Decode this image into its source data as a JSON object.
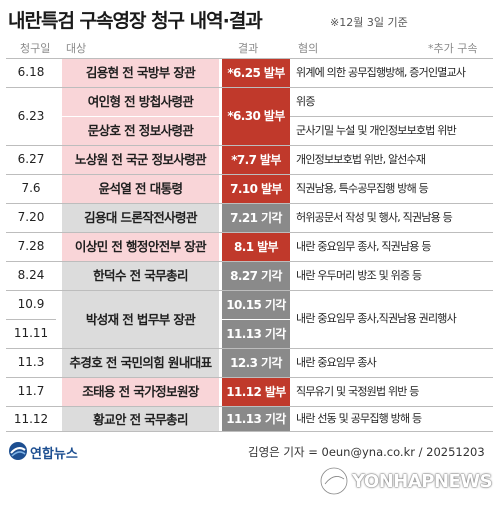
{
  "title": "내란특검 구속영장 청구 내역·결과",
  "subnote": "※12월 3일 기준",
  "headers": {
    "date": "청구일",
    "target": "대상",
    "result": "결과",
    "charge": "혐의",
    "extra": "*추가 구속"
  },
  "rows": [
    {
      "date": "6.18",
      "target": "김용현 전 국방부 장관",
      "result": "*6.25 발부",
      "charge": "위계에 의한 공무집행방해, 증거인멸교사"
    },
    {
      "date": "6.23",
      "target": "여인형 전 방첩사령관",
      "result": "*6.30 발부",
      "charge": "위증"
    },
    {
      "date": "",
      "target": "문상호 전 정보사령관",
      "result": "",
      "charge": "군사기밀 누설 및 개인정보보호법 위반"
    },
    {
      "date": "6.27",
      "target": "노상원 전 국군 정보사령관",
      "result": "*7.7 발부",
      "charge": "개인정보보호법 위반, 알선수재"
    },
    {
      "date": "7.6",
      "target": "윤석열 전 대통령",
      "result": "7.10 발부",
      "charge": "직권남용, 특수공무집행 방해 등"
    },
    {
      "date": "7.20",
      "target": "김용대 드론작전사령관",
      "result": "7.21 기각",
      "charge": "허위공문서 작성 및 행사, 직권남용 등"
    },
    {
      "date": "7.28",
      "target": "이상민 전 행정안전부 장관",
      "result": "8.1 발부",
      "charge": "내란 중요임무 종사, 직권남용 등"
    },
    {
      "date": "8.24",
      "target": "한덕수 전 국무총리",
      "result": "8.27 기각",
      "charge": "내란 우두머리 방조 및 위증 등"
    },
    {
      "date": "10.9",
      "target": "박성재 전 법무부 장관",
      "result": "10.15 기각",
      "charge": "내란 중요임무 종사,직권남용 권리행사"
    },
    {
      "date": "11.11",
      "target": "",
      "result": "11.13 기각",
      "charge": ""
    },
    {
      "date": "11.3",
      "target": "추경호 전 국민의힘 원내대표",
      "result": "12.3 기각",
      "charge": "내란 중요임무 종사"
    },
    {
      "date": "11.7",
      "target": "조태용 전 국가정보원장",
      "result": "11.12 발부",
      "charge": "직무유기 및 국정원법 위반 등"
    },
    {
      "date": "11.12",
      "target": "황교안 전 국무총리",
      "result": "11.13 기각",
      "charge": "내란 선동 및 공무집행 방해 등"
    }
  ],
  "credit": "김영은 기자 = 0eun@yna.co.kr / 20251203",
  "logo_ko": "연합뉴스",
  "logo_en": "YONHAPNEWS",
  "colors": {
    "issued": "#c0392b",
    "rejected": "#8a8a8a",
    "issued_bg": "#f9d5d8",
    "rejected_bg": "#dcdcdc",
    "brand": "#1d4f91"
  }
}
